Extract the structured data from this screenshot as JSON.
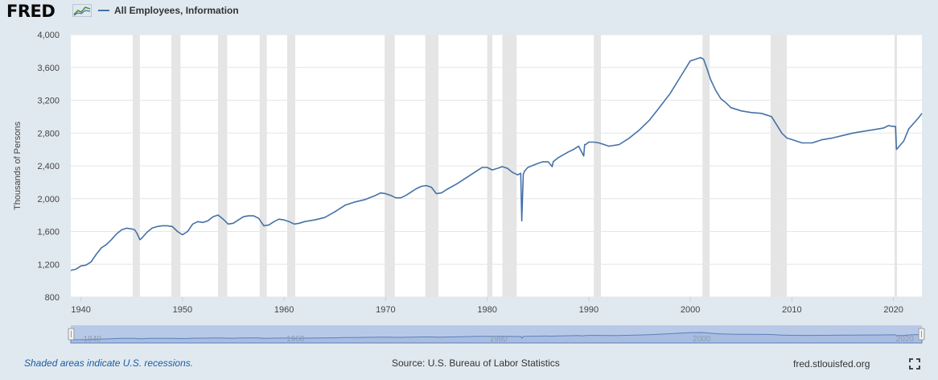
{
  "logo": {
    "text": "FRED"
  },
  "legend": {
    "label": "All Employees, Information",
    "color": "#4572a7"
  },
  "footer": {
    "recession_note": "Shaded areas indicate U.S. recessions.",
    "source": "Source: U.S. Bureau of Labor Statistics",
    "site": "fred.stlouisfed.org"
  },
  "icons": {
    "logo_chart": "line-chart-icon",
    "fullscreen": "fullscreen-icon"
  },
  "colors": {
    "line": "#4572a7",
    "recession": "#e5e5e5",
    "grid": "#e6e6e6",
    "background": "#e1e9f0",
    "plot": "#ffffff",
    "navigator_fill": "#b8c9e8",
    "navigator_line": "#5a81b8"
  },
  "chart_data": {
    "type": "line",
    "title": "All Employees, Information",
    "xlabel": "",
    "ylabel": "Thousands of Persons",
    "xlim": [
      1939,
      2022.8
    ],
    "ylim": [
      800,
      4000
    ],
    "xticks": [
      1940,
      1950,
      1960,
      1970,
      1980,
      1990,
      2000,
      2010,
      2020
    ],
    "xtick_labels": [
      "1940",
      "1950",
      "1960",
      "1970",
      "1980",
      "1990",
      "2000",
      "2010",
      "2020"
    ],
    "yticks": [
      800,
      1200,
      1600,
      2000,
      2400,
      2800,
      3200,
      3600,
      4000
    ],
    "ytick_labels": [
      "800",
      "1,200",
      "1,600",
      "2,000",
      "2,400",
      "2,800",
      "3,200",
      "3,600",
      "4,000"
    ],
    "navigator_ticks": [
      "1940",
      "1960",
      "1980",
      "2000",
      "2020"
    ],
    "navigator_tick_years": [
      1940,
      1960,
      1980,
      2000,
      2020
    ],
    "recessions": [
      [
        1945.1,
        1945.8
      ],
      [
        1948.9,
        1949.8
      ],
      [
        1953.5,
        1954.4
      ],
      [
        1957.6,
        1958.3
      ],
      [
        1960.3,
        1961.1
      ],
      [
        1969.9,
        1970.9
      ],
      [
        1973.9,
        1975.2
      ],
      [
        1980.0,
        1980.5
      ],
      [
        1981.5,
        1982.9
      ],
      [
        1990.5,
        1991.2
      ],
      [
        2001.2,
        2001.9
      ],
      [
        2007.9,
        2009.5
      ],
      [
        2020.1,
        2020.35
      ]
    ],
    "series": [
      {
        "name": "All Employees, Information",
        "x": [
          1939.0,
          1939.5,
          1940.0,
          1940.5,
          1941.0,
          1941.5,
          1942.0,
          1942.5,
          1943.0,
          1943.5,
          1944.0,
          1944.5,
          1945.0,
          1945.3,
          1945.5,
          1945.8,
          1946.0,
          1946.5,
          1947.0,
          1947.5,
          1948.0,
          1948.5,
          1949.0,
          1949.5,
          1950.0,
          1950.5,
          1951.0,
          1951.5,
          1952.0,
          1952.5,
          1953.0,
          1953.5,
          1954.0,
          1954.5,
          1955.0,
          1955.5,
          1956.0,
          1956.5,
          1957.0,
          1957.5,
          1958.0,
          1958.5,
          1959.0,
          1959.5,
          1960.0,
          1960.5,
          1961.0,
          1961.5,
          1962.0,
          1963.0,
          1964.0,
          1965.0,
          1966.0,
          1967.0,
          1968.0,
          1969.0,
          1969.5,
          1970.0,
          1970.5,
          1971.0,
          1971.5,
          1972.0,
          1973.0,
          1973.5,
          1974.0,
          1974.5,
          1975.0,
          1975.5,
          1976.0,
          1977.0,
          1978.0,
          1979.0,
          1979.5,
          1980.0,
          1980.5,
          1981.0,
          1981.5,
          1982.0,
          1982.5,
          1983.0,
          1983.3,
          1983.4,
          1983.55,
          1983.7,
          1984.0,
          1985.0,
          1985.5,
          1986.0,
          1986.4,
          1986.5,
          1987.0,
          1988.0,
          1988.5,
          1989.0,
          1989.5,
          1989.6,
          1989.7,
          1990.0,
          1990.5,
          1991.0,
          1991.5,
          1992.0,
          1993.0,
          1994.0,
          1995.0,
          1996.0,
          1997.0,
          1998.0,
          1999.0,
          2000.0,
          2000.5,
          2001.0,
          2001.3,
          2001.6,
          2002.0,
          2002.5,
          2003.0,
          2003.5,
          2004.0,
          2005.0,
          2006.0,
          2007.0,
          2007.5,
          2008.0,
          2008.5,
          2009.0,
          2009.5,
          2010.0,
          2011.0,
          2012.0,
          2013.0,
          2014.0,
          2015.0,
          2016.0,
          2017.0,
          2018.0,
          2019.0,
          2019.5,
          2020.0,
          2020.2,
          2020.3,
          2020.5,
          2021.0,
          2021.5,
          2022.0,
          2022.5,
          2022.8
        ],
        "values": [
          1125,
          1140,
          1180,
          1190,
          1230,
          1320,
          1400,
          1440,
          1500,
          1570,
          1620,
          1640,
          1630,
          1620,
          1580,
          1500,
          1520,
          1590,
          1640,
          1660,
          1670,
          1670,
          1660,
          1600,
          1560,
          1600,
          1690,
          1720,
          1710,
          1730,
          1780,
          1800,
          1750,
          1690,
          1700,
          1740,
          1780,
          1790,
          1790,
          1760,
          1670,
          1680,
          1720,
          1750,
          1740,
          1720,
          1690,
          1700,
          1720,
          1740,
          1770,
          1840,
          1920,
          1960,
          1990,
          2040,
          2070,
          2060,
          2040,
          2010,
          2010,
          2040,
          2120,
          2150,
          2160,
          2140,
          2060,
          2070,
          2110,
          2180,
          2260,
          2340,
          2380,
          2380,
          2350,
          2370,
          2390,
          2370,
          2320,
          2290,
          2310,
          1730,
          2300,
          2340,
          2380,
          2430,
          2450,
          2450,
          2390,
          2450,
          2500,
          2570,
          2600,
          2640,
          2520,
          2660,
          2660,
          2690,
          2690,
          2680,
          2660,
          2640,
          2660,
          2740,
          2840,
          2960,
          3120,
          3280,
          3480,
          3680,
          3700,
          3720,
          3700,
          3600,
          3450,
          3320,
          3220,
          3170,
          3110,
          3070,
          3050,
          3040,
          3020,
          3000,
          2900,
          2800,
          2740,
          2720,
          2680,
          2680,
          2720,
          2740,
          2770,
          2800,
          2820,
          2840,
          2860,
          2890,
          2880,
          2880,
          2600,
          2630,
          2700,
          2850,
          2920,
          2990,
          3040
        ]
      }
    ]
  }
}
